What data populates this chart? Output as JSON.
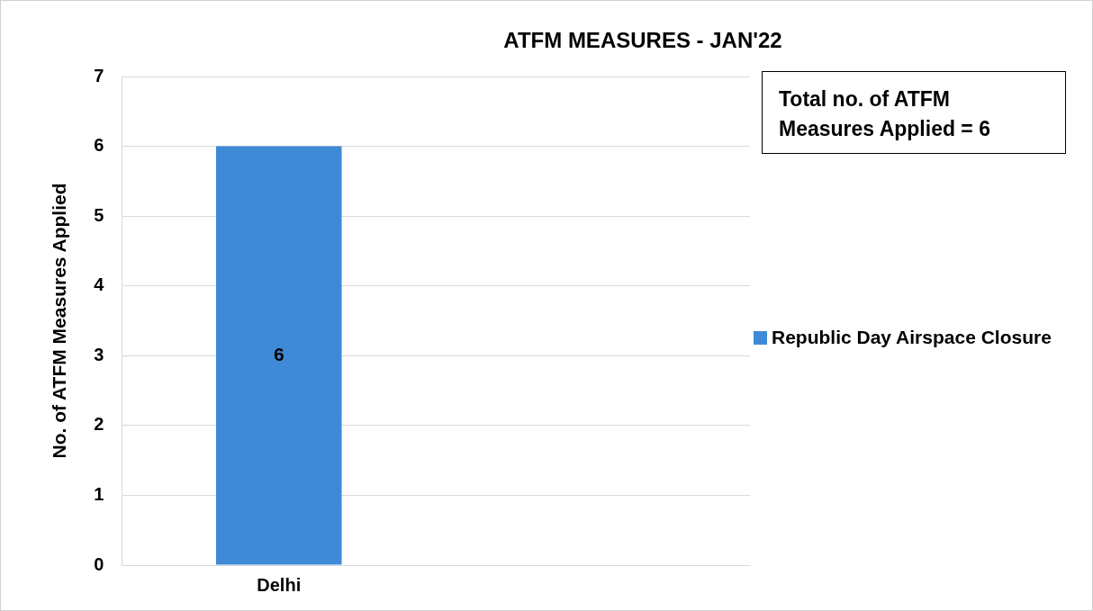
{
  "chart_data": {
    "type": "bar",
    "title": "ATFM MEASURES - JAN'22",
    "ylabel": "No. of ATFM Measures Applied",
    "categories": [
      "Delhi",
      null
    ],
    "series": [
      {
        "name": "Republic Day Airspace Closure",
        "color": "#3f8ad6",
        "values": [
          6,
          null
        ]
      }
    ],
    "ylim": [
      0,
      7
    ],
    "yticks": [
      0,
      1,
      2,
      3,
      4,
      5,
      6,
      7
    ],
    "grid": "y",
    "legend": "right",
    "data_labels": true,
    "annotations": [
      "Total no. of ATFM Measures Applied = 6"
    ]
  }
}
